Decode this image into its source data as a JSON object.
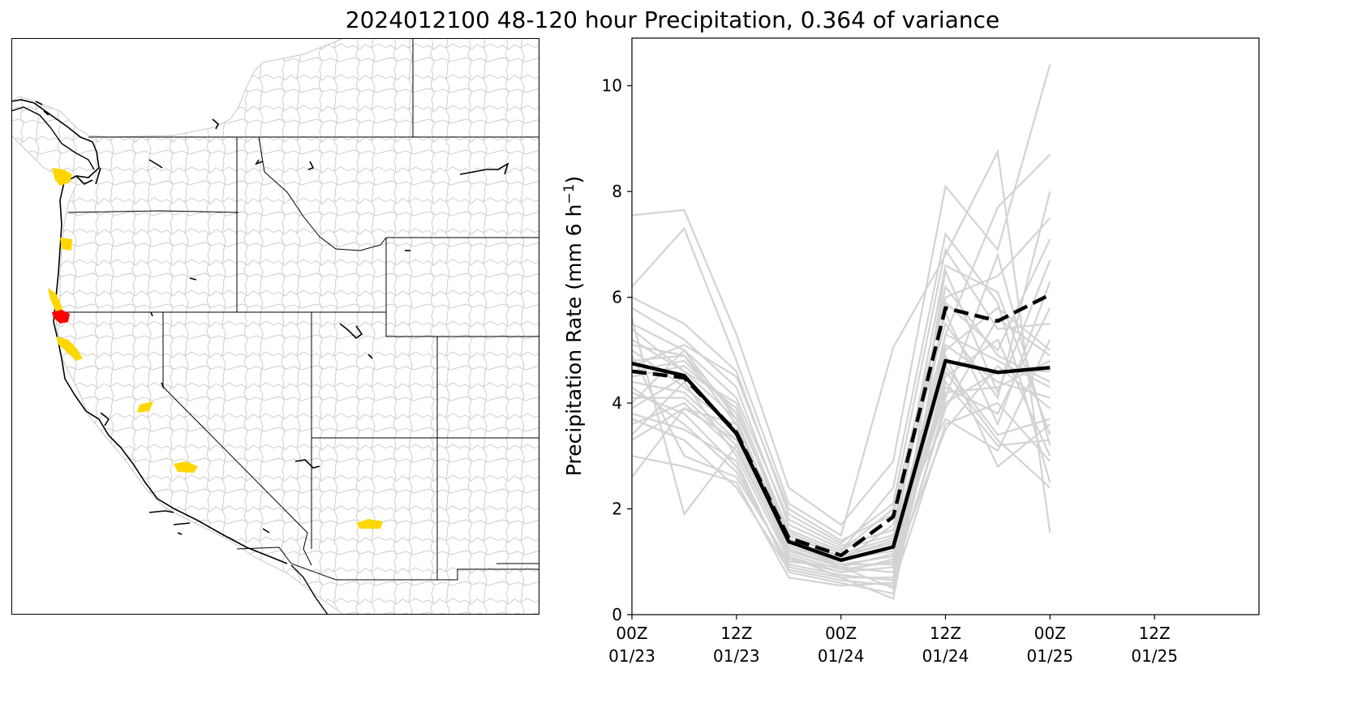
{
  "figure": {
    "title": "2024012100 48-120 hour Precipitation, 0.364 of variance"
  },
  "map": {
    "description_colors": {
      "highlight_primary": "#ffd700",
      "highlight_secondary": "#ff0000",
      "boundaries": "#000000",
      "basins": "#c8c8c8"
    }
  },
  "chart_data": {
    "type": "line",
    "ylabel": "Precipitation Rate (mm 6 h",
    "ylabel_sup": "−1",
    "ylabel_close": ")",
    "ylim": [
      0,
      10.9
    ],
    "yticks": [
      0,
      2,
      4,
      6,
      8,
      10
    ],
    "xlim": [
      0,
      36
    ],
    "xticks": [
      {
        "x": 0,
        "label1": "00Z",
        "label2": "01/23"
      },
      {
        "x": 6,
        "label1": "12Z",
        "label2": "01/23"
      },
      {
        "x": 12,
        "label1": "00Z",
        "label2": "01/24"
      },
      {
        "x": 18,
        "label1": "12Z",
        "label2": "01/24"
      },
      {
        "x": 24,
        "label1": "00Z",
        "label2": "01/25"
      },
      {
        "x": 30,
        "label1": "12Z",
        "label2": "01/25"
      }
    ],
    "x": [
      0,
      3,
      6,
      9,
      12,
      15,
      18,
      21,
      24
    ],
    "colors": {
      "ensemble": "#d3d3d3",
      "mean": "#000000"
    },
    "series": [
      {
        "style": "solid",
        "values": [
          4.75,
          4.52,
          3.42,
          1.38,
          1.03,
          1.28,
          4.8,
          4.58,
          4.67
        ]
      },
      {
        "style": "dashed",
        "values": [
          4.6,
          4.48,
          3.45,
          1.45,
          1.12,
          1.85,
          5.8,
          5.55,
          6.05
        ]
      }
    ],
    "ensemble": [
      [
        7.55,
        7.65,
        5.3,
        2.4,
        1.7,
        2.9,
        8.1,
        6.9,
        10.4
      ],
      [
        6.2,
        7.3,
        4.8,
        2.1,
        1.5,
        5.05,
        6.8,
        8.75,
        1.55
      ],
      [
        5.6,
        1.9,
        3.2,
        1.1,
        0.7,
        0.3,
        5.3,
        7.7,
        8.7
      ],
      [
        5.1,
        4.9,
        3.8,
        1.6,
        1.2,
        2.4,
        7.2,
        5.9,
        2.5
      ],
      [
        4.9,
        3.0,
        2.6,
        1.0,
        0.9,
        0.5,
        6.5,
        4.2,
        6.7
      ],
      [
        4.4,
        4.2,
        3.3,
        1.2,
        0.95,
        1.1,
        4.1,
        6.8,
        3.2
      ],
      [
        4.0,
        5.0,
        4.1,
        1.8,
        1.3,
        1.6,
        3.7,
        3.1,
        5.2
      ],
      [
        3.8,
        3.5,
        2.9,
        0.8,
        0.6,
        0.4,
        5.9,
        5.0,
        7.1
      ],
      [
        3.4,
        4.4,
        3.0,
        1.05,
        0.8,
        0.9,
        3.5,
        4.7,
        3.9
      ],
      [
        3.0,
        2.8,
        2.5,
        0.7,
        0.55,
        0.6,
        4.6,
        3.3,
        2.4
      ],
      [
        2.6,
        3.9,
        3.6,
        1.5,
        1.1,
        1.4,
        6.2,
        4.9,
        4.4
      ],
      [
        5.4,
        4.6,
        3.7,
        1.35,
        1.05,
        1.2,
        4.9,
        2.8,
        3.6
      ],
      [
        4.7,
        5.1,
        4.5,
        2.0,
        1.4,
        1.9,
        5.5,
        4.1,
        8.0
      ],
      [
        4.2,
        3.8,
        2.8,
        0.9,
        0.7,
        0.7,
        3.9,
        5.6,
        4.9
      ],
      [
        5.8,
        5.2,
        4.3,
        1.7,
        1.25,
        1.5,
        6.6,
        6.1,
        3.4
      ],
      [
        3.6,
        4.0,
        3.1,
        1.15,
        0.85,
        1.0,
        4.3,
        3.8,
        5.8
      ],
      [
        4.5,
        4.7,
        3.9,
        1.45,
        1.0,
        1.3,
        5.1,
        4.4,
        4.1
      ],
      [
        5.0,
        4.3,
        3.5,
        1.25,
        0.9,
        0.8,
        4.5,
        5.2,
        3.0
      ],
      [
        3.9,
        4.5,
        3.4,
        1.3,
        1.0,
        1.7,
        5.7,
        3.6,
        6.3
      ],
      [
        4.3,
        3.6,
        2.7,
        0.95,
        0.75,
        0.65,
        4.0,
        4.6,
        4.6
      ],
      [
        6.0,
        5.5,
        4.6,
        1.9,
        1.35,
        2.1,
        6.9,
        5.4,
        5.5
      ],
      [
        4.1,
        4.1,
        3.2,
        1.1,
        0.8,
        1.05,
        4.7,
        3.4,
        3.7
      ],
      [
        4.8,
        4.9,
        3.6,
        1.4,
        1.1,
        1.35,
        5.3,
        4.8,
        4.3
      ],
      [
        3.7,
        3.3,
        2.4,
        0.85,
        0.65,
        0.55,
        3.6,
        4.0,
        2.9
      ],
      [
        5.2,
        4.6,
        4.0,
        1.55,
        1.15,
        1.45,
        5.0,
        5.8,
        5.0
      ],
      [
        4.6,
        4.8,
        3.8,
        1.6,
        1.2,
        2.0,
        6.0,
        6.4,
        7.5
      ],
      [
        3.3,
        3.9,
        3.3,
        1.2,
        0.9,
        1.15,
        4.4,
        3.2,
        3.3
      ],
      [
        5.5,
        5.0,
        3.7,
        1.3,
        0.95,
        0.95,
        4.2,
        4.3,
        4.8
      ]
    ]
  }
}
